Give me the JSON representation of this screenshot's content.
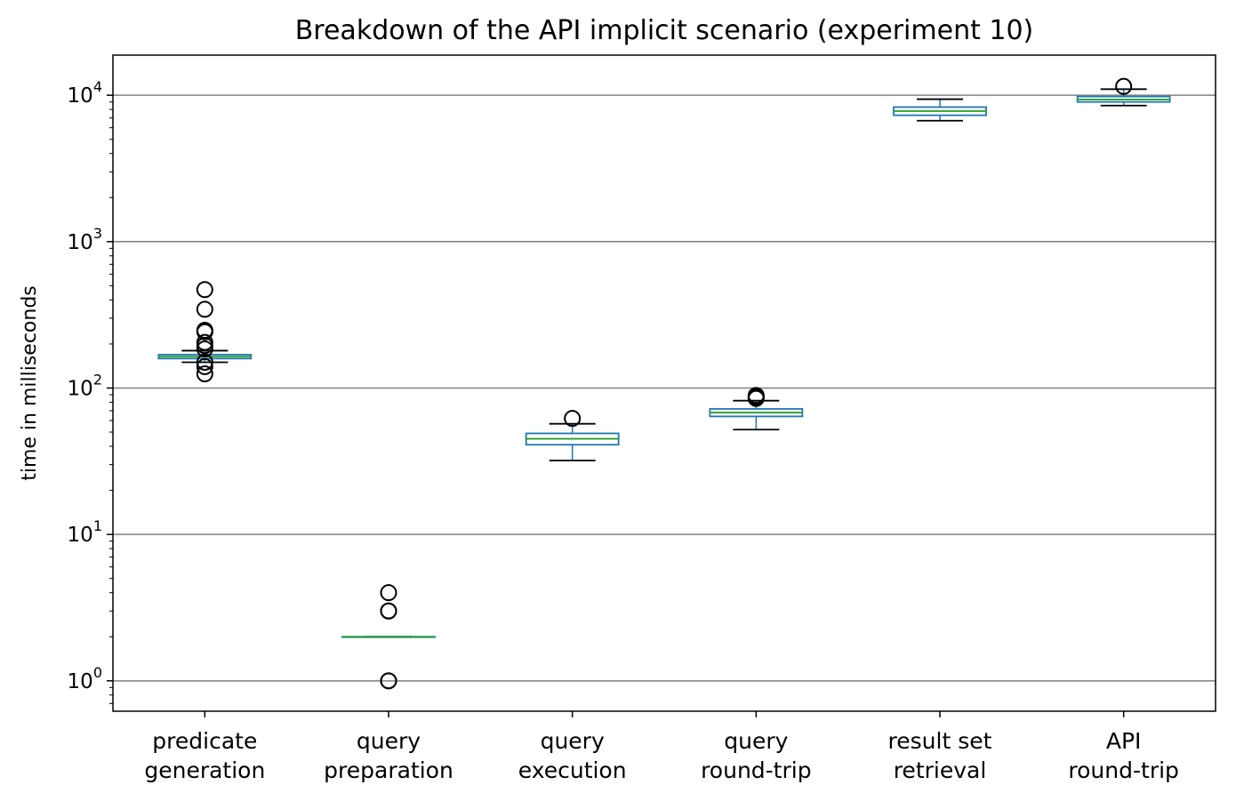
{
  "chart_data": {
    "type": "box",
    "title": "Breakdown of the API implicit scenario (experiment 10)",
    "ylabel": "time in milliseconds",
    "xlabel": "",
    "yscale": "log",
    "ylim": [
      0.62,
      18800
    ],
    "grid": "y-major",
    "yticks": [
      {
        "value": 1,
        "base": "10",
        "exp": "0"
      },
      {
        "value": 10,
        "base": "10",
        "exp": "1"
      },
      {
        "value": 100,
        "base": "10",
        "exp": "2"
      },
      {
        "value": 1000,
        "base": "10",
        "exp": "3"
      },
      {
        "value": 10000,
        "base": "10",
        "exp": "4"
      }
    ],
    "categories": [
      {
        "line1": "predicate",
        "line2": "generation"
      },
      {
        "line1": "query",
        "line2": "preparation"
      },
      {
        "line1": "query",
        "line2": "execution"
      },
      {
        "line1": "query",
        "line2": "round-trip"
      },
      {
        "line1": "result set",
        "line2": "retrieval"
      },
      {
        "line1": "API",
        "line2": "round-trip"
      }
    ],
    "boxes": [
      {
        "whislo": 150,
        "q1": 159,
        "med": 164,
        "q3": 169,
        "whishi": 180,
        "fliers": [
          470,
          345,
          248,
          242,
          205,
          195,
          185,
          150,
          140,
          125
        ]
      },
      {
        "whislo": 2,
        "q1": 2,
        "med": 2,
        "q3": 2,
        "whishi": 2,
        "fliers": [
          4,
          3,
          3,
          1,
          1
        ]
      },
      {
        "whislo": 32,
        "q1": 41,
        "med": 45,
        "q3": 49,
        "whishi": 57,
        "fliers": [
          62
        ]
      },
      {
        "whislo": 52,
        "q1": 64,
        "med": 68,
        "q3": 72,
        "whishi": 82,
        "fliers": [
          89,
          87,
          85
        ]
      },
      {
        "whislo": 6700,
        "q1": 7300,
        "med": 7800,
        "q3": 8300,
        "whishi": 9400,
        "fliers": []
      },
      {
        "whislo": 8500,
        "q1": 9000,
        "med": 9350,
        "q3": 9800,
        "whishi": 11000,
        "fliers": [
          11500
        ]
      }
    ],
    "colors": {
      "box": "#1f77b4",
      "median": "#2ca02c",
      "whisker": "#1f77b4",
      "cap": "#000000",
      "flier": "#000000",
      "grid": "#808080"
    }
  }
}
